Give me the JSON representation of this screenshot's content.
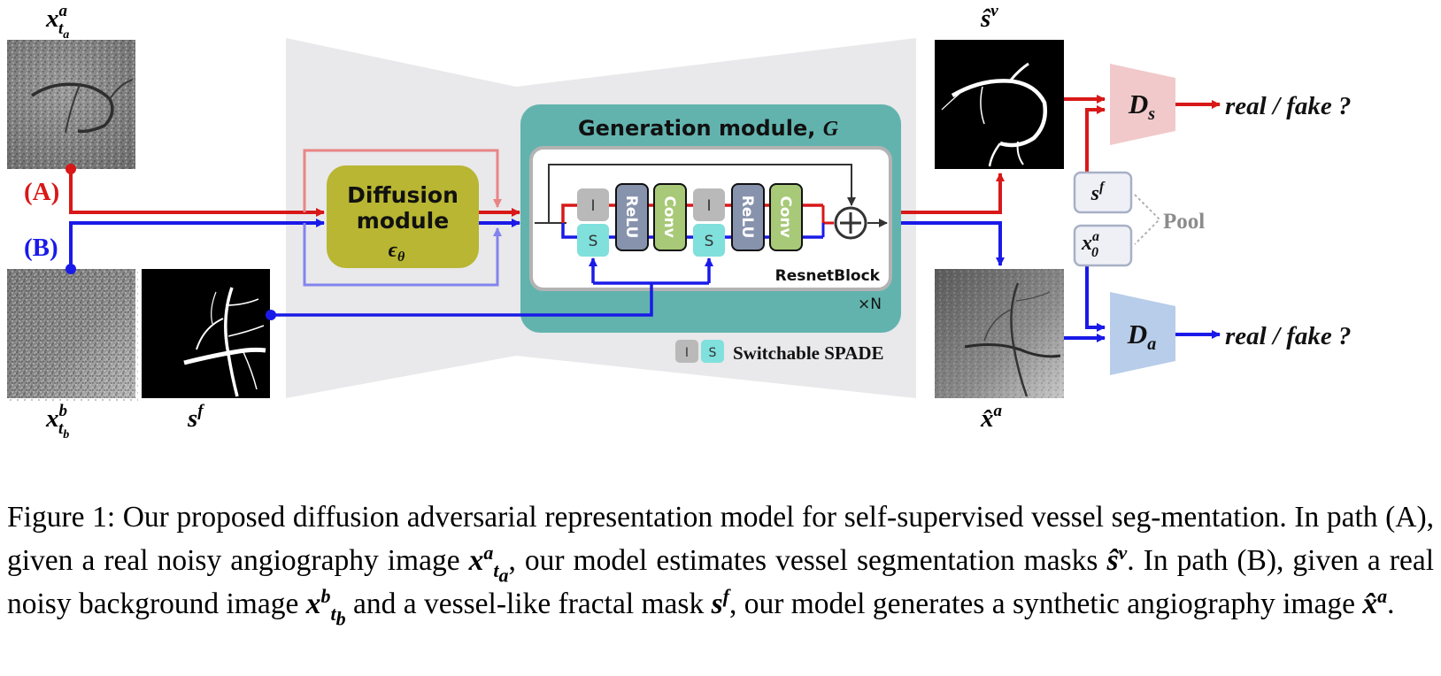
{
  "diagram": {
    "labels": {
      "input_a": "x",
      "input_a_sup": "a",
      "input_a_sub": "t",
      "input_a_subsub": "a",
      "path_a": "(A)",
      "path_b": "(B)",
      "input_b": "x",
      "input_b_sup": "b",
      "input_b_sub": "t",
      "input_b_subsub": "b",
      "fractal": "s",
      "fractal_sup": "f",
      "out_seg": "ŝ",
      "out_seg_sup": "v",
      "out_img": "x̂",
      "out_img_sup": "a"
    },
    "diffusion_module": {
      "line1": "Diffusion",
      "line2": "module",
      "symbol": "ϵ",
      "symbol_sub": "θ"
    },
    "generation_module": {
      "title": "Generation module, ",
      "title_sym": "G",
      "repeat": "×N"
    },
    "resnet_block": {
      "name": "ResnetBlock",
      "blocks": [
        {
          "top": "I",
          "bottom": "S"
        },
        {
          "label": "ReLU"
        },
        {
          "label": "Conv"
        },
        {
          "top": "I",
          "bottom": "S"
        },
        {
          "label": "ReLU"
        },
        {
          "label": "Conv"
        }
      ],
      "sum_symbol": "+"
    },
    "legend": {
      "i": "I",
      "s": "S",
      "text": "Switchable SPADE"
    },
    "discriminators": [
      {
        "name": "D",
        "sub": "s",
        "output": "real / fake ?"
      },
      {
        "name": "D",
        "sub": "a",
        "output": "real / fake ?"
      }
    ],
    "pool": {
      "label": "Pool",
      "items": [
        {
          "name": "s",
          "sup": "f"
        },
        {
          "name": "x",
          "sup": "a",
          "sub": "0"
        }
      ]
    },
    "colors": {
      "path_a": "#d81818",
      "path_b": "#1a1ae8",
      "diffusion": "#b8b632",
      "generation": "#62b3ae",
      "relu": "#8793ad",
      "conv": "#a7c978",
      "spade_i": "#b9b9b9",
      "spade_s": "#7fe0dc",
      "disc_s": "#f1c9ca",
      "disc_a": "#b7cde9",
      "funnel": "#e9e8ea"
    }
  },
  "caption": {
    "prefix": "Figure 1: Our proposed diffusion adversarial representation model for self-supervised vessel seg-mentation. In path (A), given a real noisy angiography image ",
    "mid1": ", our model estimates vessel segmentation masks ",
    "mid2": ". In path (B), given a real noisy background image ",
    "mid3": " and a vessel-like fractal mask ",
    "mid4": ", our model generates a synthetic angiography image ",
    "end": "."
  }
}
